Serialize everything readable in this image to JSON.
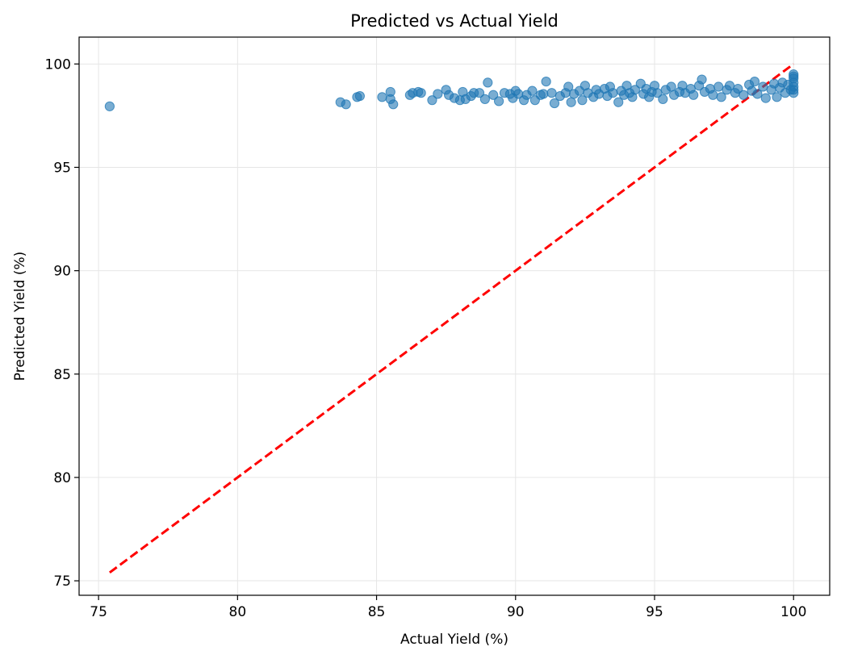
{
  "chart_data": {
    "type": "scatter",
    "title": "Predicted vs Actual Yield",
    "xlabel": "Actual Yield (%)",
    "ylabel": "Predicted Yield (%)",
    "xlim": [
      74.3,
      101.3
    ],
    "ylim": [
      74.3,
      101.3
    ],
    "xticks": [
      75,
      80,
      85,
      90,
      95,
      100
    ],
    "yticks": [
      75,
      80,
      85,
      90,
      95,
      100
    ],
    "grid": true,
    "colors": {
      "points": "#1f77b4",
      "reference_line": "#ff0000",
      "grid": "#e6e6e6"
    },
    "reference_line": {
      "style": "dashed",
      "from": [
        75.4,
        75.4
      ],
      "to": [
        100,
        100
      ]
    },
    "series": [
      {
        "points": [
          [
            75.4,
            97.95
          ],
          [
            83.7,
            98.15
          ],
          [
            83.9,
            98.05
          ],
          [
            84.3,
            98.4
          ],
          [
            84.4,
            98.45
          ],
          [
            85.2,
            98.4
          ],
          [
            85.5,
            98.65
          ],
          [
            85.5,
            98.3
          ],
          [
            85.6,
            98.05
          ],
          [
            86.2,
            98.5
          ],
          [
            86.3,
            98.6
          ],
          [
            86.5,
            98.65
          ],
          [
            86.6,
            98.6
          ],
          [
            87.0,
            98.25
          ],
          [
            87.2,
            98.55
          ],
          [
            87.5,
            98.75
          ],
          [
            87.6,
            98.5
          ],
          [
            87.8,
            98.35
          ],
          [
            88.0,
            98.25
          ],
          [
            88.1,
            98.65
          ],
          [
            88.2,
            98.3
          ],
          [
            88.4,
            98.45
          ],
          [
            88.5,
            98.6
          ],
          [
            88.7,
            98.6
          ],
          [
            88.9,
            98.3
          ],
          [
            89.0,
            99.1
          ],
          [
            89.2,
            98.5
          ],
          [
            89.4,
            98.2
          ],
          [
            89.6,
            98.6
          ],
          [
            89.8,
            98.55
          ],
          [
            89.9,
            98.35
          ],
          [
            90.0,
            98.7
          ],
          [
            90.1,
            98.55
          ],
          [
            90.3,
            98.25
          ],
          [
            90.4,
            98.5
          ],
          [
            90.6,
            98.7
          ],
          [
            90.7,
            98.25
          ],
          [
            90.9,
            98.5
          ],
          [
            91.0,
            98.55
          ],
          [
            91.1,
            99.15
          ],
          [
            91.3,
            98.6
          ],
          [
            91.4,
            98.1
          ],
          [
            91.6,
            98.45
          ],
          [
            91.8,
            98.6
          ],
          [
            91.9,
            98.9
          ],
          [
            92.0,
            98.15
          ],
          [
            92.1,
            98.55
          ],
          [
            92.3,
            98.7
          ],
          [
            92.4,
            98.25
          ],
          [
            92.5,
            98.95
          ],
          [
            92.6,
            98.6
          ],
          [
            92.8,
            98.4
          ],
          [
            92.9,
            98.75
          ],
          [
            93.0,
            98.55
          ],
          [
            93.2,
            98.8
          ],
          [
            93.3,
            98.45
          ],
          [
            93.4,
            98.9
          ],
          [
            93.5,
            98.6
          ],
          [
            93.7,
            98.15
          ],
          [
            93.8,
            98.7
          ],
          [
            93.9,
            98.5
          ],
          [
            94.0,
            98.95
          ],
          [
            94.1,
            98.6
          ],
          [
            94.2,
            98.4
          ],
          [
            94.3,
            98.75
          ],
          [
            94.5,
            99.05
          ],
          [
            94.6,
            98.55
          ],
          [
            94.7,
            98.8
          ],
          [
            94.8,
            98.4
          ],
          [
            94.9,
            98.65
          ],
          [
            95.0,
            98.95
          ],
          [
            95.1,
            98.6
          ],
          [
            95.3,
            98.3
          ],
          [
            95.4,
            98.75
          ],
          [
            95.6,
            98.9
          ],
          [
            95.7,
            98.5
          ],
          [
            95.9,
            98.65
          ],
          [
            96.0,
            98.95
          ],
          [
            96.1,
            98.6
          ],
          [
            96.3,
            98.8
          ],
          [
            96.4,
            98.5
          ],
          [
            96.6,
            98.95
          ],
          [
            96.7,
            99.25
          ],
          [
            96.8,
            98.65
          ],
          [
            97.0,
            98.8
          ],
          [
            97.1,
            98.5
          ],
          [
            97.3,
            98.9
          ],
          [
            97.4,
            98.4
          ],
          [
            97.6,
            98.75
          ],
          [
            97.7,
            98.95
          ],
          [
            97.9,
            98.6
          ],
          [
            98.0,
            98.8
          ],
          [
            98.2,
            98.5
          ],
          [
            98.4,
            99.0
          ],
          [
            98.5,
            98.7
          ],
          [
            98.6,
            99.15
          ],
          [
            98.7,
            98.55
          ],
          [
            98.9,
            98.9
          ],
          [
            99.0,
            98.35
          ],
          [
            99.2,
            98.75
          ],
          [
            99.3,
            99.05
          ],
          [
            99.4,
            98.4
          ],
          [
            99.5,
            98.85
          ],
          [
            99.6,
            99.1
          ],
          [
            99.7,
            98.6
          ],
          [
            99.8,
            99.0
          ],
          [
            99.9,
            98.75
          ],
          [
            100.0,
            99.5
          ],
          [
            100.0,
            99.3
          ],
          [
            100.0,
            99.1
          ],
          [
            100.0,
            98.9
          ],
          [
            100.0,
            98.75
          ],
          [
            100.0,
            98.6
          ],
          [
            100.0,
            99.4
          ]
        ]
      }
    ]
  }
}
